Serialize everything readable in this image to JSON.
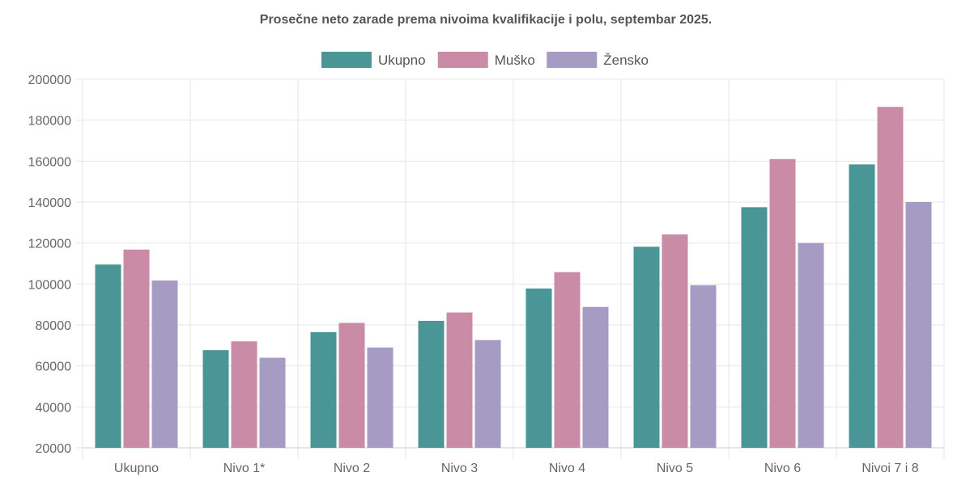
{
  "chart_data": {
    "type": "bar",
    "title": "Prosečne neto zarade prema nivoima kvalifikacije i polu, septembar 2025.",
    "categories": [
      "Ukupno",
      "Nivo 1*",
      "Nivo 2",
      "Nivo 3",
      "Nivo 4",
      "Nivo 5",
      "Nivo 6",
      "Nivoi 7 i 8"
    ],
    "series": [
      {
        "name": "Ukupno",
        "color": "#4a9697",
        "values": [
          109500,
          67700,
          76500,
          82000,
          97800,
          118200,
          137500,
          158400
        ]
      },
      {
        "name": "Muško",
        "color": "#c98ba6",
        "values": [
          116800,
          72000,
          81000,
          86100,
          105800,
          124200,
          161000,
          186500
        ]
      },
      {
        "name": "Žensko",
        "color": "#a69bc2",
        "values": [
          101700,
          64000,
          69000,
          72600,
          88800,
          99400,
          120000,
          140000
        ]
      }
    ],
    "ylim": [
      20000,
      200000
    ],
    "yticks": [
      "20000",
      "40000",
      "60000",
      "80000",
      "100000",
      "120000",
      "140000",
      "160000",
      "180000",
      "200000"
    ],
    "xlabel": "",
    "ylabel": "",
    "grid": true,
    "legend_position": "top-center"
  }
}
